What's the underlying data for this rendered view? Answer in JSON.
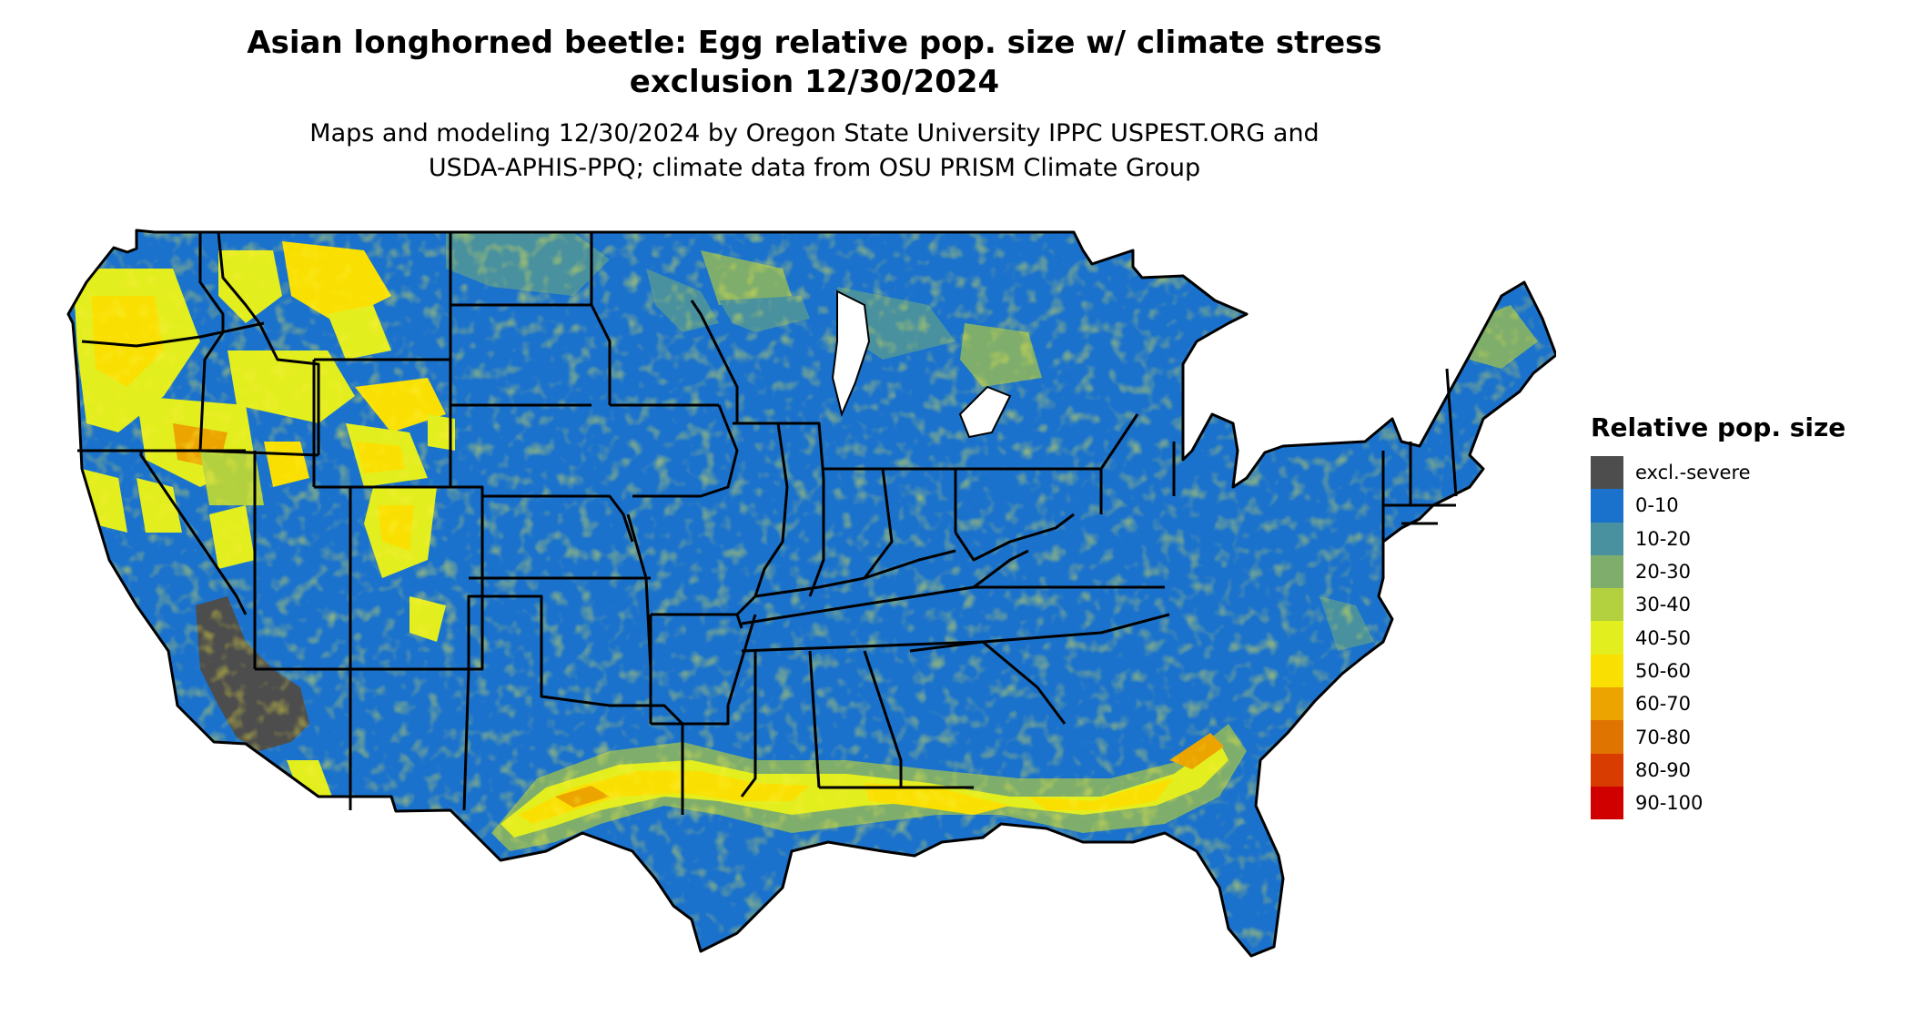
{
  "header": {
    "title_line1": "Asian longhorned beetle: Egg relative pop. size w/ climate stress",
    "title_line2": "exclusion 12/30/2024",
    "subtitle_line1": "Maps and modeling 12/30/2024 by Oregon State University IPPC USPEST.ORG and",
    "subtitle_line2": "USDA-APHIS-PPQ; climate data from OSU PRISM Climate Group"
  },
  "legend": {
    "title": "Relative pop. size",
    "items": [
      {
        "label": "excl.-severe",
        "color": "#4d4d4d"
      },
      {
        "label": "0-10",
        "color": "#1b72cd"
      },
      {
        "label": "10-20",
        "color": "#4a91a0"
      },
      {
        "label": "20-30",
        "color": "#7fae6c"
      },
      {
        "label": "30-40",
        "color": "#b3d13f"
      },
      {
        "label": "40-50",
        "color": "#e3ee1e"
      },
      {
        "label": "50-60",
        "color": "#fae002"
      },
      {
        "label": "60-70",
        "color": "#eca400"
      },
      {
        "label": "70-80",
        "color": "#e07400"
      },
      {
        "label": "80-90",
        "color": "#d93c00"
      },
      {
        "label": "90-100",
        "color": "#d10000"
      }
    ]
  },
  "map": {
    "base_color": "#1b72cd",
    "border_color": "#000000"
  }
}
